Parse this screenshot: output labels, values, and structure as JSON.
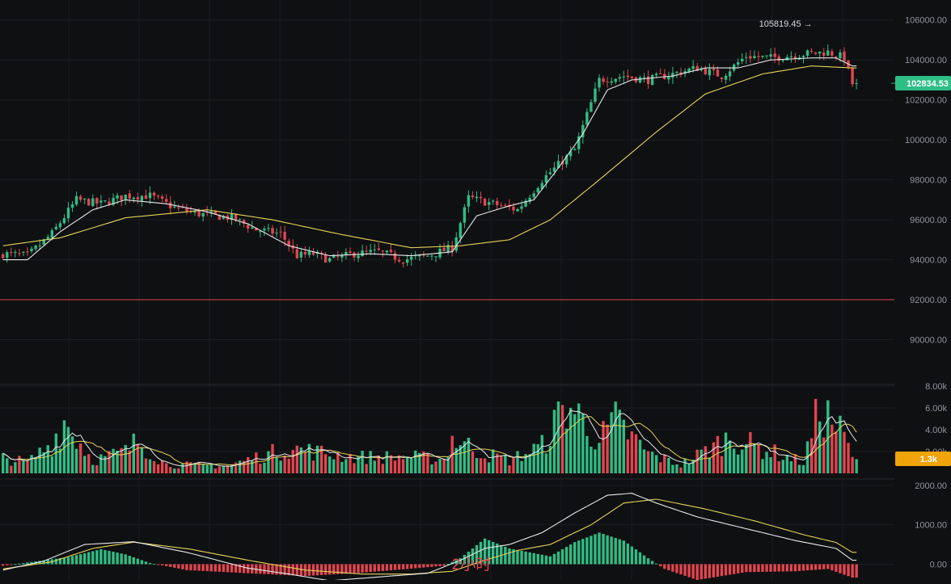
{
  "chart_data": [
    {
      "type": "candlestick",
      "panel": "price",
      "ylim": [
        88000,
        107000
      ],
      "y_ticks": [
        "106000.00",
        "104000.00",
        "102000.00",
        "100000.00",
        "98000.00",
        "96000.00",
        "94000.00",
        "92000.00",
        "90000.00"
      ],
      "y_tick_values": [
        106000,
        104000,
        102000,
        100000,
        98000,
        96000,
        94000,
        92000,
        90000
      ],
      "last_price_label": "102834.53",
      "last_price": 102834.53,
      "high_marker_label": "105819.45 →",
      "high_marker_value": 105819.45,
      "horizontal_line": 92000,
      "close_anchors": [
        [
          0,
          94300
        ],
        [
          6,
          94200
        ],
        [
          12,
          95300
        ],
        [
          18,
          97000
        ],
        [
          24,
          96800
        ],
        [
          30,
          97200
        ],
        [
          36,
          97200
        ],
        [
          42,
          96600
        ],
        [
          48,
          96300
        ],
        [
          56,
          96100
        ],
        [
          62,
          95500
        ],
        [
          68,
          95300
        ],
        [
          72,
          94200
        ],
        [
          76,
          94300
        ],
        [
          80,
          94000
        ],
        [
          86,
          94300
        ],
        [
          92,
          94400
        ],
        [
          98,
          94000
        ],
        [
          104,
          94200
        ],
        [
          110,
          94600
        ],
        [
          114,
          97100
        ],
        [
          120,
          96800
        ],
        [
          126,
          96500
        ],
        [
          132,
          98000
        ],
        [
          140,
          99500
        ],
        [
          146,
          103000
        ],
        [
          152,
          103200
        ],
        [
          158,
          103000
        ],
        [
          164,
          103300
        ],
        [
          170,
          103600
        ],
        [
          176,
          103200
        ],
        [
          182,
          104200
        ],
        [
          188,
          104100
        ],
        [
          196,
          104300
        ],
        [
          202,
          104400
        ],
        [
          206,
          104100
        ],
        [
          208,
          102800
        ]
      ],
      "ma_fast_anchors": [
        [
          0,
          94000
        ],
        [
          6,
          94000
        ],
        [
          14,
          95400
        ],
        [
          22,
          96500
        ],
        [
          30,
          97000
        ],
        [
          40,
          96800
        ],
        [
          50,
          96400
        ],
        [
          60,
          95800
        ],
        [
          70,
          94700
        ],
        [
          80,
          94200
        ],
        [
          90,
          94300
        ],
        [
          100,
          94200
        ],
        [
          110,
          94400
        ],
        [
          116,
          96200
        ],
        [
          124,
          96700
        ],
        [
          130,
          97000
        ],
        [
          136,
          98600
        ],
        [
          142,
          100300
        ],
        [
          148,
          102500
        ],
        [
          154,
          103000
        ],
        [
          164,
          103200
        ],
        [
          172,
          103600
        ],
        [
          180,
          103600
        ],
        [
          188,
          104000
        ],
        [
          198,
          104100
        ],
        [
          204,
          104100
        ],
        [
          208,
          103700
        ]
      ],
      "ma_slow_anchors": [
        [
          0,
          94700
        ],
        [
          14,
          95100
        ],
        [
          30,
          96100
        ],
        [
          50,
          96500
        ],
        [
          66,
          96000
        ],
        [
          82,
          95300
        ],
        [
          100,
          94600
        ],
        [
          112,
          94700
        ],
        [
          124,
          95000
        ],
        [
          134,
          96000
        ],
        [
          146,
          98000
        ],
        [
          160,
          100400
        ],
        [
          172,
          102300
        ],
        [
          186,
          103300
        ],
        [
          198,
          103700
        ],
        [
          208,
          103600
        ]
      ]
    },
    {
      "type": "bar",
      "panel": "volume",
      "ylim": [
        0,
        8000
      ],
      "y_ticks": [
        "8.00k",
        "6.00k",
        "4.00k",
        "2.00k"
      ],
      "y_tick_values": [
        8000,
        6000,
        4000,
        2000
      ],
      "last_volume_label": "1.3k",
      "last_volume": 1300,
      "volume_anchors": [
        [
          0,
          1400
        ],
        [
          6,
          1000
        ],
        [
          12,
          2800
        ],
        [
          15,
          4800
        ],
        [
          22,
          1200
        ],
        [
          30,
          2000
        ],
        [
          33,
          3000
        ],
        [
          40,
          800
        ],
        [
          55,
          700
        ],
        [
          70,
          2300
        ],
        [
          80,
          1800
        ],
        [
          86,
          1500
        ],
        [
          100,
          1500
        ],
        [
          108,
          1300
        ],
        [
          110,
          3200
        ],
        [
          118,
          1800
        ],
        [
          124,
          1200
        ],
        [
          132,
          2500
        ],
        [
          138,
          6300
        ],
        [
          140,
          5700
        ],
        [
          146,
          3000
        ],
        [
          150,
          4800
        ],
        [
          158,
          1800
        ],
        [
          166,
          800
        ],
        [
          178,
          3300
        ],
        [
          184,
          2500
        ],
        [
          196,
          1000
        ],
        [
          200,
          6000
        ],
        [
          203,
          4800
        ],
        [
          206,
          3400
        ],
        [
          208,
          1300
        ]
      ]
    },
    {
      "type": "macd",
      "panel": "indicator",
      "ylim": [
        -400,
        2100
      ],
      "y_ticks": [
        "2000.00",
        "1000.00",
        "0.00"
      ],
      "y_tick_values": [
        2000,
        1000,
        0
      ],
      "interval_label": "2小时",
      "dif_anchors": [
        [
          0,
          -150
        ],
        [
          10,
          80
        ],
        [
          20,
          500
        ],
        [
          32,
          570
        ],
        [
          45,
          300
        ],
        [
          60,
          -100
        ],
        [
          70,
          -250
        ],
        [
          80,
          -420
        ],
        [
          95,
          -300
        ],
        [
          104,
          -230
        ],
        [
          112,
          100
        ],
        [
          118,
          400
        ],
        [
          124,
          500
        ],
        [
          132,
          800
        ],
        [
          140,
          1300
        ],
        [
          148,
          1750
        ],
        [
          154,
          1800
        ],
        [
          160,
          1550
        ],
        [
          170,
          1200
        ],
        [
          182,
          900
        ],
        [
          194,
          600
        ],
        [
          204,
          400
        ],
        [
          208,
          100
        ]
      ],
      "dea_anchors": [
        [
          0,
          -120
        ],
        [
          12,
          60
        ],
        [
          22,
          400
        ],
        [
          32,
          560
        ],
        [
          46,
          380
        ],
        [
          60,
          100
        ],
        [
          74,
          -150
        ],
        [
          88,
          -250
        ],
        [
          100,
          -250
        ],
        [
          110,
          -180
        ],
        [
          118,
          100
        ],
        [
          126,
          350
        ],
        [
          134,
          500
        ],
        [
          144,
          1000
        ],
        [
          152,
          1550
        ],
        [
          160,
          1650
        ],
        [
          172,
          1400
        ],
        [
          184,
          1100
        ],
        [
          196,
          750
        ],
        [
          204,
          550
        ],
        [
          208,
          300
        ]
      ],
      "hist_anchors": [
        [
          0,
          -40
        ],
        [
          16,
          180
        ],
        [
          24,
          380
        ],
        [
          30,
          250
        ],
        [
          36,
          30
        ],
        [
          45,
          -150
        ],
        [
          60,
          -230
        ],
        [
          74,
          -300
        ],
        [
          86,
          -230
        ],
        [
          98,
          -130
        ],
        [
          108,
          -40
        ],
        [
          112,
          150
        ],
        [
          118,
          650
        ],
        [
          124,
          400
        ],
        [
          134,
          200
        ],
        [
          140,
          560
        ],
        [
          146,
          800
        ],
        [
          152,
          600
        ],
        [
          158,
          150
        ],
        [
          162,
          -120
        ],
        [
          170,
          -400
        ],
        [
          182,
          -200
        ],
        [
          194,
          -180
        ],
        [
          202,
          -120
        ],
        [
          208,
          -340
        ]
      ]
    }
  ]
}
